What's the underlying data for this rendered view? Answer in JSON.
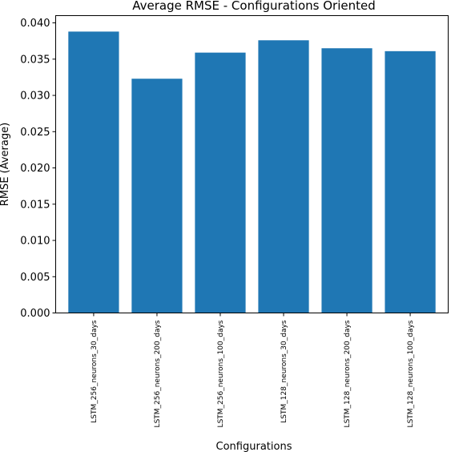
{
  "chart_data": {
    "type": "bar",
    "title": "Average RMSE - Configurations Oriented",
    "xlabel": "Configurations",
    "ylabel": "RMSE (Average)",
    "categories": [
      "LSTM_256_neurons_30_days",
      "LSTM_256_neurons_200_days",
      "LSTM_256_neurons_100_days",
      "LSTM_128_neurons_30_days",
      "LSTM_128_neurons_200_days",
      "LSTM_128_neurons_100_days"
    ],
    "values": [
      0.0388,
      0.0323,
      0.0359,
      0.0376,
      0.0365,
      0.0361
    ],
    "ylim": [
      0,
      0.041
    ],
    "yticks": [
      "0.000",
      "0.005",
      "0.010",
      "0.015",
      "0.020",
      "0.025",
      "0.030",
      "0.035",
      "0.040"
    ],
    "bar_color": "#1f77b4",
    "grid": false
  }
}
